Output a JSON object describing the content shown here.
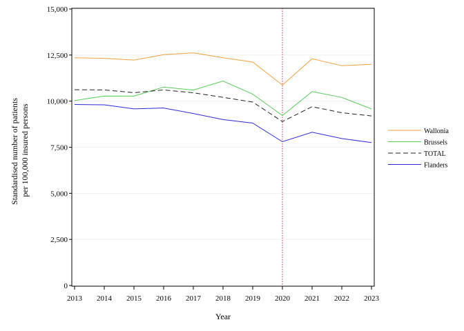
{
  "chart_data": {
    "type": "line",
    "title": "",
    "xlabel": "Year",
    "ylabel_lines": [
      "Standardised number of patients",
      "per 100,000 insured persons"
    ],
    "x": [
      2013,
      2014,
      2015,
      2016,
      2017,
      2018,
      2019,
      2020,
      2021,
      2022,
      2023
    ],
    "x_tick_labels": [
      "2013",
      "2014",
      "2015",
      "2016",
      "2017",
      "2018",
      "2019",
      "2020",
      "2021",
      "2022",
      "2023"
    ],
    "ylim": [
      0,
      15000
    ],
    "y_ticks": [
      0,
      2500,
      5000,
      7500,
      10000,
      12500,
      15000
    ],
    "y_tick_labels": [
      "0",
      "2,500",
      "5,000",
      "7,500",
      "10,000",
      "12,500",
      "15,000"
    ],
    "grid": true,
    "legend_position": "right",
    "reference_line": {
      "x": 2020,
      "color": "#c0304f",
      "style": "dotted"
    },
    "series": [
      {
        "name": "Wallonia",
        "color": "#f0a040",
        "dash": "solid",
        "values": [
          12350,
          12320,
          12230,
          12520,
          12620,
          12350,
          12120,
          10870,
          12300,
          11920,
          12000
        ]
      },
      {
        "name": "Brussels",
        "color": "#55cc55",
        "dash": "solid",
        "values": [
          10030,
          10280,
          10270,
          10760,
          10600,
          11090,
          10380,
          9220,
          10520,
          10200,
          9580
        ]
      },
      {
        "name": "TOTAL",
        "color": "#222222",
        "dash": "dashed",
        "values": [
          10620,
          10610,
          10460,
          10610,
          10450,
          10210,
          9950,
          8890,
          9700,
          9370,
          9200
        ]
      },
      {
        "name": "Flanders",
        "color": "#2a2ad8",
        "dash": "solid",
        "values": [
          9820,
          9800,
          9580,
          9630,
          9330,
          9000,
          8810,
          7800,
          8310,
          7970,
          7750
        ]
      }
    ]
  }
}
